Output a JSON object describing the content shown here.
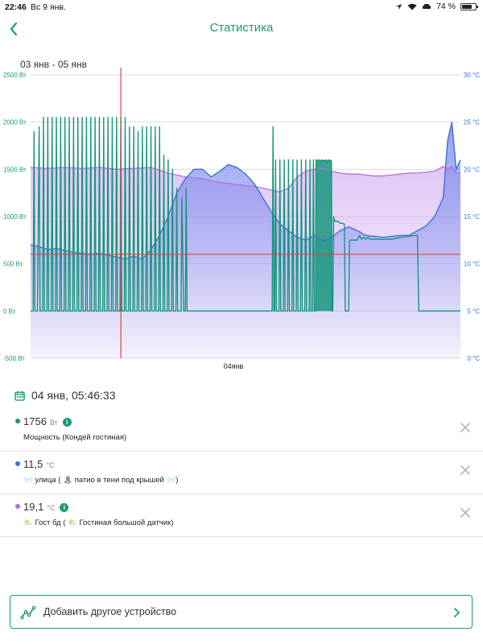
{
  "status_bar": {
    "time": "22:46",
    "date": "Вс 9 янв.",
    "battery": "74 %"
  },
  "header": {
    "title": "Статистика"
  },
  "date_range": "03 янв - 05 янв",
  "chart_data": {
    "type": "area",
    "left_axis": {
      "unit": "Вт",
      "ticks": [
        "2500 Вт",
        "2000 Вт",
        "1500 Вт",
        "1000 Вт",
        "500 Вт",
        "0 Вт",
        "-500 Вт"
      ],
      "range": [
        -500,
        2500
      ]
    },
    "right_axis": {
      "unit": "°C",
      "ticks": [
        "30 °C",
        "25 °C",
        "20 °C",
        "15 °C",
        "10 °C",
        "5 °C",
        "0 °C"
      ],
      "range": [
        0,
        30
      ]
    },
    "x_labels": [
      "04янв"
    ],
    "series": [
      {
        "name": "Мощность (Кондей гостиная)",
        "color": "#17967c",
        "points": [
          [
            0,
            0
          ],
          [
            0.6,
            0
          ],
          [
            0.8,
            1900
          ],
          [
            1,
            0
          ],
          [
            1.6,
            0
          ],
          [
            2,
            1950
          ],
          [
            2.2,
            0
          ],
          [
            2.8,
            0
          ],
          [
            3,
            2050
          ],
          [
            3.2,
            0
          ],
          [
            3.8,
            0
          ],
          [
            4,
            2050
          ],
          [
            4.2,
            0
          ],
          [
            4.8,
            0
          ],
          [
            5,
            2050
          ],
          [
            5.2,
            0
          ],
          [
            5.8,
            0
          ],
          [
            6,
            2050
          ],
          [
            6.2,
            0
          ],
          [
            6.8,
            0
          ],
          [
            7,
            2050
          ],
          [
            7.2,
            0
          ],
          [
            7.8,
            0
          ],
          [
            8,
            2050
          ],
          [
            8.2,
            0
          ],
          [
            8.8,
            0
          ],
          [
            9,
            2050
          ],
          [
            9.2,
            0
          ],
          [
            9.8,
            0
          ],
          [
            10,
            2050
          ],
          [
            10.2,
            0
          ],
          [
            10.8,
            0
          ],
          [
            11,
            2050
          ],
          [
            11.2,
            0
          ],
          [
            11.8,
            0
          ],
          [
            12,
            2050
          ],
          [
            12.2,
            0
          ],
          [
            12.8,
            0
          ],
          [
            13,
            2050
          ],
          [
            13.2,
            0
          ],
          [
            13.8,
            0
          ],
          [
            14,
            2050
          ],
          [
            14.2,
            0
          ],
          [
            14.8,
            0
          ],
          [
            15,
            2050
          ],
          [
            15.2,
            0
          ],
          [
            15.8,
            0
          ],
          [
            16,
            2050
          ],
          [
            16.2,
            0
          ],
          [
            16.8,
            0
          ],
          [
            17,
            2050
          ],
          [
            17.2,
            0
          ],
          [
            17.8,
            0
          ],
          [
            18,
            2050
          ],
          [
            18.2,
            0
          ],
          [
            18.8,
            0
          ],
          [
            19,
            2050
          ],
          [
            19.2,
            0
          ],
          [
            19.8,
            0
          ],
          [
            20,
            2050
          ],
          [
            20.2,
            0
          ],
          [
            20.8,
            0
          ],
          [
            21,
            2050
          ],
          [
            21.2,
            0
          ],
          [
            21.8,
            0
          ],
          [
            22,
            2050
          ],
          [
            22.2,
            0
          ],
          [
            22.8,
            0
          ],
          [
            23,
            1950
          ],
          [
            23.2,
            0
          ],
          [
            23.8,
            0
          ],
          [
            24,
            1950
          ],
          [
            24.2,
            0
          ],
          [
            24.8,
            0
          ],
          [
            25,
            1900
          ],
          [
            25.2,
            0
          ],
          [
            25.8,
            0
          ],
          [
            26,
            1950
          ],
          [
            26.2,
            0
          ],
          [
            26.8,
            0
          ],
          [
            27,
            1950
          ],
          [
            27.2,
            0
          ],
          [
            27.8,
            0
          ],
          [
            28,
            1950
          ],
          [
            28.2,
            0
          ],
          [
            28.8,
            0
          ],
          [
            29,
            1950
          ],
          [
            29.2,
            0
          ],
          [
            29.8,
            0
          ],
          [
            30,
            1950
          ],
          [
            30.2,
            0
          ],
          [
            30.8,
            0
          ],
          [
            31,
            1650
          ],
          [
            31.2,
            0
          ],
          [
            31.8,
            0
          ],
          [
            32,
            1600
          ],
          [
            32.2,
            0
          ],
          [
            32.8,
            0
          ],
          [
            33,
            1500
          ],
          [
            33.2,
            0
          ],
          [
            33.8,
            0
          ],
          [
            34,
            1300
          ],
          [
            34.2,
            0
          ],
          [
            35,
            0
          ],
          [
            35.2,
            1200
          ],
          [
            35.6,
            0
          ],
          [
            36,
            0
          ],
          [
            36.2,
            1300
          ],
          [
            36.4,
            0
          ],
          [
            56.2,
            0
          ],
          [
            56.4,
            1950
          ],
          [
            56.6,
            0
          ],
          [
            56.8,
            0
          ],
          [
            57,
            1600
          ],
          [
            57.2,
            0
          ],
          [
            57.8,
            0
          ],
          [
            58,
            1600
          ],
          [
            58.2,
            0
          ],
          [
            58.8,
            0
          ],
          [
            59,
            1600
          ],
          [
            59.2,
            0
          ],
          [
            59.8,
            0
          ],
          [
            60,
            1600
          ],
          [
            60.2,
            0
          ],
          [
            60.8,
            0
          ],
          [
            61,
            1600
          ],
          [
            61.2,
            0
          ],
          [
            61.8,
            0
          ],
          [
            62,
            1600
          ],
          [
            62.2,
            0
          ],
          [
            62.8,
            0
          ],
          [
            63,
            1600
          ],
          [
            63.2,
            0
          ],
          [
            63.8,
            0
          ],
          [
            64,
            1600
          ],
          [
            64.2,
            0
          ],
          [
            64.8,
            0
          ],
          [
            65,
            1600
          ],
          [
            65.2,
            0
          ],
          [
            65.6,
            0
          ],
          [
            65.8,
            1600
          ],
          [
            66,
            0
          ],
          [
            66.3,
            0
          ],
          [
            66.4,
            1600
          ],
          [
            66.6,
            1590
          ],
          [
            67,
            1600
          ],
          [
            67.4,
            1580
          ],
          [
            67.8,
            1600
          ],
          [
            68.2,
            1580
          ],
          [
            68.6,
            1600
          ],
          [
            69,
            1570
          ],
          [
            69.4,
            1600
          ],
          [
            69.8,
            1580
          ],
          [
            70,
            1580
          ],
          [
            70.1,
            0
          ],
          [
            70.3,
            0
          ],
          [
            70.5,
            1000
          ],
          [
            70.7,
            950
          ],
          [
            71,
            950
          ],
          [
            71.5,
            950
          ],
          [
            72,
            930
          ],
          [
            72.5,
            930
          ],
          [
            73,
            920
          ],
          [
            73.2,
            0
          ],
          [
            74,
            0
          ],
          [
            74.2,
            750
          ],
          [
            76,
            750
          ],
          [
            76.5,
            800
          ],
          [
            77,
            760
          ],
          [
            77.5,
            780
          ],
          [
            78,
            760
          ],
          [
            78.5,
            780
          ],
          [
            79,
            760
          ],
          [
            80,
            760
          ],
          [
            82,
            760
          ],
          [
            84,
            760
          ],
          [
            86,
            780
          ],
          [
            88,
            790
          ],
          [
            89,
            800
          ],
          [
            90,
            800
          ],
          [
            90.3,
            0
          ],
          [
            100,
            0
          ]
        ]
      },
      {
        "name": "улица ( патио в тени под крышей )",
        "color": "#3b6fe0",
        "points": [
          [
            0,
            12
          ],
          [
            2,
            11.8
          ],
          [
            4,
            11.5
          ],
          [
            6,
            11.6
          ],
          [
            8,
            11.4
          ],
          [
            10,
            11.2
          ],
          [
            12,
            11.1
          ],
          [
            14,
            11
          ],
          [
            16,
            11.1
          ],
          [
            18,
            10.9
          ],
          [
            20,
            10.7
          ],
          [
            22,
            10.5
          ],
          [
            24,
            10.8
          ],
          [
            26,
            10.5
          ],
          [
            28,
            11.5
          ],
          [
            30,
            13
          ],
          [
            32,
            15
          ],
          [
            34,
            17.5
          ],
          [
            36,
            19
          ],
          [
            38,
            20
          ],
          [
            40,
            20
          ],
          [
            42,
            19.2
          ],
          [
            44,
            19.8
          ],
          [
            46,
            20.5
          ],
          [
            48,
            20.2
          ],
          [
            50,
            19.5
          ],
          [
            52,
            18.5
          ],
          [
            54,
            17
          ],
          [
            56,
            15.5
          ],
          [
            58,
            14.2
          ],
          [
            60,
            13.5
          ],
          [
            62,
            12.8
          ],
          [
            64,
            12.5
          ],
          [
            66,
            13
          ],
          [
            68,
            12.4
          ],
          [
            70,
            12.8
          ],
          [
            72,
            13.5
          ],
          [
            74,
            13.9
          ],
          [
            76,
            13.5
          ],
          [
            78,
            13
          ],
          [
            80,
            12.9
          ],
          [
            82,
            12.8
          ],
          [
            84,
            12.9
          ],
          [
            86,
            13
          ],
          [
            88,
            13
          ],
          [
            90,
            13.5
          ],
          [
            92,
            14
          ],
          [
            94,
            15
          ],
          [
            96,
            17
          ],
          [
            97,
            23
          ],
          [
            98,
            25
          ],
          [
            99,
            20
          ],
          [
            99.5,
            20.5
          ],
          [
            100,
            21
          ]
        ]
      },
      {
        "name": "Гост бд ( Гостиная большой датчик)",
        "color": "#b36ee0",
        "points": [
          [
            0,
            20.2
          ],
          [
            4,
            20.1
          ],
          [
            8,
            20.2
          ],
          [
            12,
            20.1
          ],
          [
            16,
            20.2
          ],
          [
            20,
            20
          ],
          [
            24,
            20.1
          ],
          [
            28,
            20.2
          ],
          [
            30,
            19.9
          ],
          [
            32,
            19.6
          ],
          [
            34,
            19.4
          ],
          [
            36,
            19.2
          ],
          [
            38,
            19.1
          ],
          [
            40,
            19
          ],
          [
            42,
            18.8
          ],
          [
            44,
            18.6
          ],
          [
            46,
            18.5
          ],
          [
            48,
            18.4
          ],
          [
            50,
            18.3
          ],
          [
            52,
            18.2
          ],
          [
            54,
            18
          ],
          [
            56,
            17.8
          ],
          [
            58,
            17.6
          ],
          [
            60,
            18
          ],
          [
            62,
            19.2
          ],
          [
            64,
            19.8
          ],
          [
            66,
            20
          ],
          [
            68,
            20.1
          ],
          [
            70,
            19.8
          ],
          [
            72,
            19.6
          ],
          [
            74,
            19.5
          ],
          [
            76,
            19.5
          ],
          [
            78,
            19.4
          ],
          [
            80,
            19.3
          ],
          [
            82,
            19.3
          ],
          [
            84,
            19.4
          ],
          [
            86,
            19.5
          ],
          [
            88,
            19.6
          ],
          [
            90,
            19.6
          ],
          [
            92,
            19.7
          ],
          [
            94,
            19.8
          ],
          [
            96,
            20.3
          ],
          [
            97,
            20
          ],
          [
            98,
            20.3
          ],
          [
            99,
            19.6
          ],
          [
            100,
            19.6
          ]
        ]
      }
    ],
    "threshold_c": 11,
    "cursor_x": 21
  },
  "selected_reading": {
    "datetime": "04 янв, 05:46:33",
    "items": [
      {
        "value": "1756",
        "unit": "Вт",
        "name": "Мощность (Кондей гостиная)",
        "color": "#17967c",
        "has_info": true
      },
      {
        "value": "11,5",
        "unit": "°C",
        "name": "📨 улица ( 🏝 патио в тени под крышей 📨)",
        "color": "#3b6fe0",
        "has_info": false
      },
      {
        "value": "19,1",
        "unit": "°C",
        "name": "⛅ Гост бд ( ⛅ Гостиная большой датчик)",
        "color": "#b36ee0",
        "has_info": true
      }
    ]
  },
  "add_device_label": "Добавить другое устройство",
  "icons": {
    "back": "chevron-left-icon",
    "calendar": "calendar-icon",
    "info": "info-icon",
    "close": "close-icon",
    "chart": "chart-line-icon",
    "chevron": "chevron-right-icon"
  }
}
